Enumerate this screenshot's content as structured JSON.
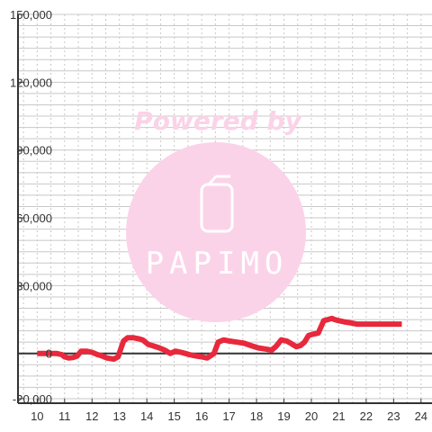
{
  "chart_data": {
    "type": "line",
    "x": [
      10,
      10.3,
      10.7,
      10.9,
      11,
      11.15,
      11.3,
      11.45,
      11.6,
      11.8,
      12,
      12.2,
      12.35,
      12.55,
      12.8,
      12.95,
      13.05,
      13.15,
      13.3,
      13.5,
      13.7,
      13.85,
      14.05,
      14.2,
      14.45,
      14.65,
      14.85,
      15.05,
      15.25,
      15.4,
      15.55,
      15.75,
      16.0,
      16.2,
      16.45,
      16.6,
      16.8,
      17.0,
      17.3,
      17.55,
      17.8,
      18.05,
      18.3,
      18.55,
      18.7,
      18.9,
      19.1,
      19.25,
      19.45,
      19.6,
      19.75,
      19.9,
      20.05,
      20.25,
      20.45,
      20.6,
      20.75,
      20.85,
      21.0,
      21.2,
      21.45,
      21.65,
      21.9,
      22.2,
      22.5,
      22.8,
      23.1,
      23.3
    ],
    "y": [
      0,
      0,
      0,
      -500,
      -1500,
      -2000,
      -1800,
      -1200,
      1000,
      1000,
      500,
      -500,
      -1000,
      -2000,
      -2500,
      -1500,
      2000,
      5500,
      7000,
      7000,
      6500,
      6000,
      4000,
      3500,
      2500,
      1500,
      0,
      1000,
      500,
      0,
      -500,
      -1000,
      -1500,
      -2000,
      0,
      5000,
      6000,
      5500,
      5000,
      4500,
      3500,
      2500,
      2000,
      1500,
      3000,
      6000,
      5500,
      4500,
      3000,
      3500,
      5000,
      8000,
      8500,
      9000,
      14500,
      15000,
      15500,
      15000,
      14500,
      14000,
      13500,
      13000,
      13000,
      13000,
      13000,
      13000,
      13000,
      13000
    ],
    "xlim": [
      9.3,
      24.4
    ],
    "ylim": [
      -22000,
      150000
    ],
    "x_ticks": [
      10,
      11,
      12,
      13,
      14,
      15,
      16,
      17,
      18,
      19,
      20,
      21,
      22,
      23,
      24
    ],
    "y_ticks": [
      -20000,
      0,
      30000,
      60000,
      90000,
      120000,
      150000
    ],
    "x_tick_labels": [
      "10",
      "11",
      "12",
      "13",
      "14",
      "15",
      "16",
      "17",
      "18",
      "19",
      "20",
      "21",
      "22",
      "23",
      "24"
    ],
    "y_tick_labels": [
      "-20,000",
      "0",
      "30,000",
      "60,000",
      "90,000",
      "120,000",
      "150,000"
    ],
    "grid": true,
    "title": "",
    "xlabel": "",
    "ylabel": ""
  },
  "colors": {
    "line": "#e8283c",
    "axis": "#333333",
    "grid_minor": "#c8c8c8",
    "grid_major": "#c8c8c8",
    "watermark": "#fbd3e8"
  },
  "watermark": {
    "line1": "Powered by",
    "brand": "PAPIMO",
    "icon": "phone-icon"
  }
}
